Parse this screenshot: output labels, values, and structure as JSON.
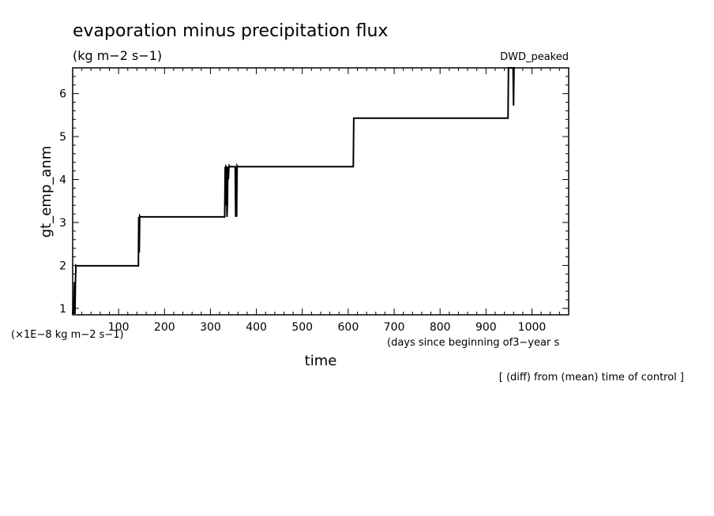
{
  "chart_data": {
    "type": "line",
    "title": "evaporation minus precipitation flux",
    "units": "(kg m−2 s−1)",
    "run_label": "DWD_peaked",
    "xlabel": "time",
    "ylabel": "gt_emp_anm",
    "x_unit_note": "(days since beginning of3−year s",
    "y_scale_note": "(×1E−8 kg m−2 s−1)",
    "footnote": "[ (diff) from (mean) time of control ]",
    "xlim": [
      0,
      1080
    ],
    "ylim": [
      0.85,
      6.6
    ],
    "x_ticks": [
      100,
      200,
      300,
      400,
      500,
      600,
      700,
      800,
      900,
      1000
    ],
    "y_ticks": [
      1,
      2,
      3,
      4,
      5,
      6
    ],
    "grid": false,
    "series": [
      {
        "x": [
          0,
          1,
          2,
          3,
          4,
          5,
          6,
          7,
          8,
          143,
          144,
          145,
          146,
          147,
          331,
          332,
          333,
          334,
          335,
          336,
          337,
          338,
          339,
          340,
          341,
          342,
          343,
          344,
          354,
          355,
          356,
          357,
          358,
          359,
          611,
          612,
          948,
          949,
          958,
          959,
          960,
          961,
          962,
          963
        ],
        "y": [
          0.87,
          1.0,
          0.87,
          1.2,
          1.6,
          0.87,
          1.6,
          2.0,
          1.99,
          1.99,
          3.13,
          2.3,
          3.15,
          3.13,
          3.13,
          4.3,
          3.4,
          4.3,
          4.28,
          3.13,
          3.5,
          4.3,
          4.0,
          4.25,
          4.32,
          4.3,
          4.3,
          4.3,
          4.3,
          3.13,
          4.3,
          3.13,
          4.32,
          4.3,
          4.3,
          5.43,
          5.43,
          6.6,
          6.6,
          6.6,
          5.72,
          6.6,
          6.6,
          6.6
        ]
      }
    ]
  }
}
